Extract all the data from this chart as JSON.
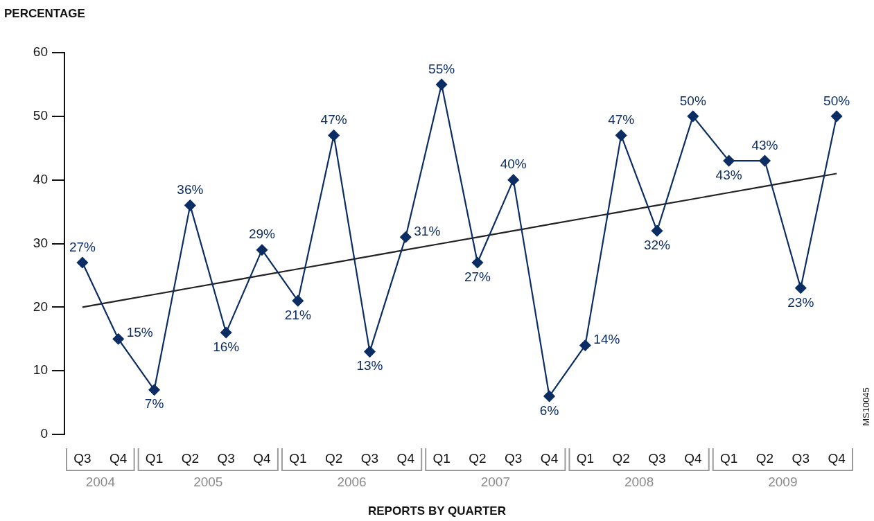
{
  "chart_data": {
    "type": "line",
    "ylabel": "PERCENTAGE",
    "xlabel": "REPORTS BY QUARTER",
    "categories": [
      "Q3",
      "Q4",
      "Q1",
      "Q2",
      "Q3",
      "Q4",
      "Q1",
      "Q2",
      "Q3",
      "Q4",
      "Q1",
      "Q2",
      "Q3",
      "Q4",
      "Q1",
      "Q2",
      "Q3",
      "Q4",
      "Q1",
      "Q2",
      "Q3",
      "Q4"
    ],
    "series": [
      {
        "color": "#0b2d63",
        "marker": "diamond",
        "values": [
          27,
          15,
          7,
          36,
          16,
          29,
          21,
          47,
          13,
          31,
          55,
          27,
          40,
          6,
          14,
          47,
          32,
          50,
          43,
          43,
          23,
          50
        ],
        "value_labels": [
          "27%",
          "15%",
          "7%",
          "36%",
          "16%",
          "29%",
          "21%",
          "47%",
          "13%",
          "31%",
          "55%",
          "27%",
          "40%",
          "6%",
          "14%",
          "47%",
          "32%",
          "50%",
          "43%",
          "43%",
          "23%",
          "50%"
        ]
      },
      {
        "color": "#222222",
        "marker": "none",
        "values": [
          20,
          21,
          22,
          23,
          24,
          25,
          26,
          27,
          28,
          29,
          30,
          31,
          32,
          33,
          34,
          35,
          36,
          37,
          38,
          39,
          40,
          41
        ]
      }
    ],
    "ylim": [
      0,
      60
    ],
    "yticks": [
      0,
      10,
      20,
      30,
      40,
      50,
      60
    ],
    "grid": false,
    "legend": false,
    "annotations": [
      "2004",
      "2005",
      "2006",
      "2007",
      "2008",
      "2009",
      "MS10045"
    ]
  }
}
